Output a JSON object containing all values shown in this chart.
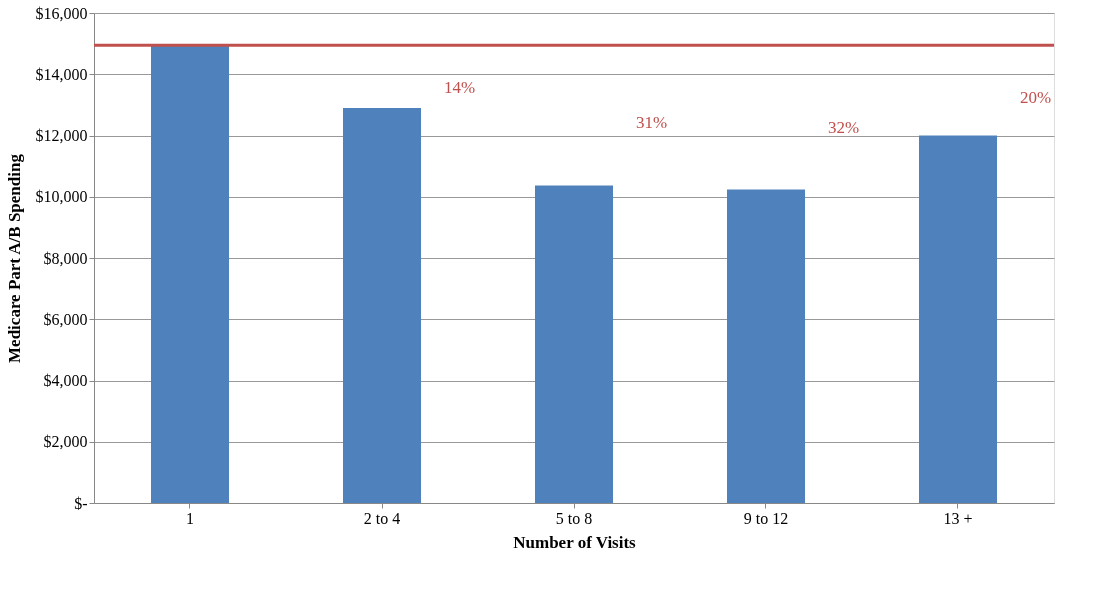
{
  "chart_data": {
    "type": "bar",
    "xlabel": "Number of Visits",
    "ylabel": "Medicare Part A/B Spending",
    "categories": [
      "1",
      "2 to 4",
      "5 to 8",
      "9 to 12",
      "13 +"
    ],
    "values": [
      14950,
      12900,
      10370,
      10240,
      12000
    ],
    "color": "#4f81bd",
    "ylim": [
      0,
      16000
    ],
    "yticks": [
      {
        "value": 0,
        "label": "$-"
      },
      {
        "value": 2000,
        "label": "$2,000"
      },
      {
        "value": 4000,
        "label": "$4,000"
      },
      {
        "value": 6000,
        "label": "$6,000"
      },
      {
        "value": 8000,
        "label": "$8,000"
      },
      {
        "value": 10000,
        "label": "$10,000"
      },
      {
        "value": 12000,
        "label": "$12,000"
      },
      {
        "value": 14000,
        "label": "$14,000"
      },
      {
        "value": 16000,
        "label": "$16,000"
      }
    ],
    "grid": "y",
    "ref_lines": [
      {
        "axis": "y",
        "value": 14950,
        "color": "#c0504d"
      }
    ],
    "annotations": [
      "14%",
      "31%",
      "32%",
      "20%"
    ]
  }
}
